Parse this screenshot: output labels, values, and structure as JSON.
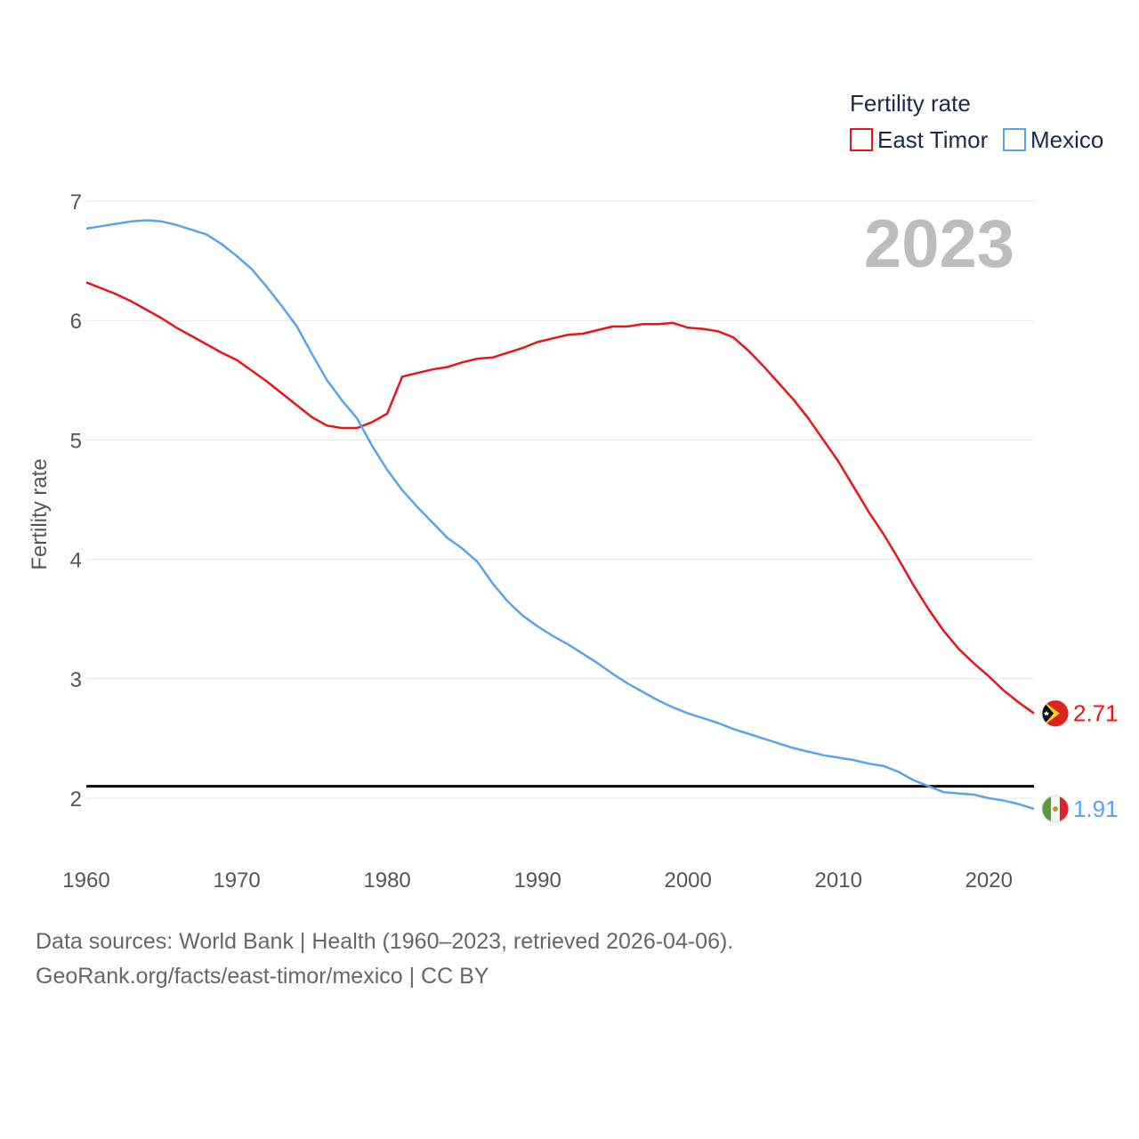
{
  "colors": {
    "east_timor": "#e8141c",
    "mexico": "#5ba3e8",
    "grid": "#e6e6e6",
    "reference_line": "#000000"
  },
  "legend": {
    "title": "Fertility rate",
    "items": [
      {
        "label": "East Timor",
        "color": "#e8141c"
      },
      {
        "label": "Mexico",
        "color": "#5ba3e8"
      }
    ]
  },
  "year_label": "2023",
  "end_labels": {
    "east_timor": "2.71",
    "mexico": "1.91"
  },
  "icons": {
    "east_timor": "east-timor-flag-icon",
    "mexico": "mexico-flag-icon"
  },
  "footer": {
    "line1": "Data sources: World Bank | Health (1960–2023, retrieved 2026-04-06).",
    "line2": "GeoRank.org/facts/east-timor/mexico | CC BY"
  },
  "chart_data": {
    "type": "line",
    "title": "",
    "xlabel": "",
    "ylabel": "Fertility rate",
    "xlim": [
      1960,
      2023
    ],
    "ylim": [
      1.5,
      7.3
    ],
    "xticks": [
      1960,
      1970,
      1980,
      1990,
      2000,
      2010,
      2020
    ],
    "yticks": [
      2,
      3,
      4,
      5,
      6,
      7
    ],
    "grid": true,
    "legend_position": "top-right",
    "reference_line": {
      "y": 2.1
    },
    "x": [
      1960,
      1961,
      1962,
      1963,
      1964,
      1965,
      1966,
      1967,
      1968,
      1969,
      1970,
      1971,
      1972,
      1973,
      1974,
      1975,
      1976,
      1977,
      1978,
      1979,
      1980,
      1981,
      1982,
      1983,
      1984,
      1985,
      1986,
      1987,
      1988,
      1989,
      1990,
      1991,
      1992,
      1993,
      1994,
      1995,
      1996,
      1997,
      1998,
      1999,
      2000,
      2001,
      2002,
      2003,
      2004,
      2005,
      2006,
      2007,
      2008,
      2009,
      2010,
      2011,
      2012,
      2013,
      2014,
      2015,
      2016,
      2017,
      2018,
      2019,
      2020,
      2021,
      2022,
      2023
    ],
    "series": [
      {
        "name": "East Timor",
        "color": "#e8141c",
        "values": [
          6.32,
          6.27,
          6.22,
          6.16,
          6.09,
          6.02,
          5.94,
          5.87,
          5.8,
          5.73,
          5.67,
          5.58,
          5.49,
          5.39,
          5.29,
          5.19,
          5.12,
          5.1,
          5.1,
          5.15,
          5.22,
          5.53,
          5.56,
          5.59,
          5.61,
          5.65,
          5.68,
          5.69,
          5.73,
          5.77,
          5.82,
          5.85,
          5.88,
          5.89,
          5.92,
          5.95,
          5.95,
          5.97,
          5.97,
          5.98,
          5.94,
          5.93,
          5.91,
          5.86,
          5.75,
          5.62,
          5.48,
          5.34,
          5.18,
          5.0,
          4.82,
          4.61,
          4.4,
          4.21,
          4.0,
          3.78,
          3.58,
          3.4,
          3.25,
          3.13,
          3.02,
          2.9,
          2.8,
          2.71
        ]
      },
      {
        "name": "Mexico",
        "color": "#5ba3e8",
        "values": [
          6.77,
          6.79,
          6.81,
          6.83,
          6.84,
          6.83,
          6.8,
          6.76,
          6.72,
          6.64,
          6.54,
          6.43,
          6.28,
          6.12,
          5.95,
          5.72,
          5.5,
          5.33,
          5.18,
          4.95,
          4.75,
          4.58,
          4.44,
          4.31,
          4.18,
          4.09,
          3.98,
          3.8,
          3.65,
          3.53,
          3.44,
          3.36,
          3.29,
          3.21,
          3.13,
          3.04,
          2.96,
          2.89,
          2.82,
          2.76,
          2.71,
          2.67,
          2.63,
          2.58,
          2.54,
          2.5,
          2.46,
          2.42,
          2.39,
          2.36,
          2.34,
          2.32,
          2.29,
          2.27,
          2.22,
          2.15,
          2.1,
          2.05,
          2.04,
          2.03,
          2.0,
          1.98,
          1.95,
          1.91
        ]
      }
    ]
  }
}
